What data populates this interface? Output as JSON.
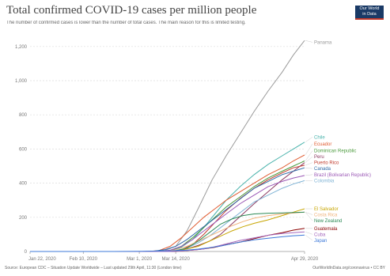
{
  "header": {
    "title": "Total confirmed COVID-19 cases per million people",
    "subtitle": "The number of confirmed cases is lower than the number of total cases. The main reason for this is limited testing.",
    "logo_line1": "Our World",
    "logo_line2": "in Data"
  },
  "footer": {
    "source": "Source: European CDC – Situation Update Worldwide – Last updated 29th April, 11:30 (London time)",
    "license": "OurWorldInData.org/coronavirus • CC BY"
  },
  "chart_data": {
    "type": "line",
    "title": "Total confirmed COVID-19 cases per million people",
    "subtitle": "The number of confirmed cases is lower than the number of total cases. The main reason for this is limited testing.",
    "x_tick_labels": [
      "Jan 22, 2020",
      "Feb 10, 2020",
      "Mar 1, 2020",
      "Mar 14, 2020",
      "Apr 29, 2020"
    ],
    "x_tick_days": [
      0,
      19,
      39,
      52,
      98
    ],
    "xlim_days": [
      0,
      98
    ],
    "y_ticks": [
      0,
      200,
      400,
      600,
      800,
      1000,
      1200
    ],
    "y_tick_labels": [
      "0",
      "200",
      "400",
      "600",
      "800",
      "1,000",
      "1,200"
    ],
    "ylim": [
      0,
      1250
    ],
    "grid": true,
    "legend": "line-end labels",
    "series": [
      {
        "name": "Panama",
        "color": "#9a9a9a",
        "label_value": 1225,
        "points": [
          [
            0,
            0
          ],
          [
            44,
            0
          ],
          [
            48,
            5
          ],
          [
            52,
            30
          ],
          [
            56,
            120
          ],
          [
            60,
            250
          ],
          [
            65,
            420
          ],
          [
            70,
            560
          ],
          [
            75,
            690
          ],
          [
            80,
            820
          ],
          [
            85,
            940
          ],
          [
            90,
            1050
          ],
          [
            94,
            1150
          ],
          [
            98,
            1235
          ]
        ]
      },
      {
        "name": "Chile",
        "color": "#4ab3ac",
        "label_value": 670,
        "points": [
          [
            0,
            0
          ],
          [
            46,
            0
          ],
          [
            50,
            5
          ],
          [
            54,
            25
          ],
          [
            58,
            70
          ],
          [
            62,
            140
          ],
          [
            66,
            220
          ],
          [
            70,
            300
          ],
          [
            75,
            380
          ],
          [
            80,
            450
          ],
          [
            85,
            510
          ],
          [
            90,
            560
          ],
          [
            94,
            600
          ],
          [
            98,
            640
          ]
        ]
      },
      {
        "name": "Ecuador",
        "color": "#e05c32",
        "label_value": 630,
        "points": [
          [
            0,
            0
          ],
          [
            42,
            0
          ],
          [
            46,
            5
          ],
          [
            50,
            30
          ],
          [
            54,
            80
          ],
          [
            58,
            140
          ],
          [
            62,
            200
          ],
          [
            66,
            250
          ],
          [
            70,
            300
          ],
          [
            75,
            350
          ],
          [
            80,
            400
          ],
          [
            85,
            450
          ],
          [
            90,
            490
          ],
          [
            94,
            530
          ],
          [
            98,
            565
          ]
        ]
      },
      {
        "name": "Dominican Republic",
        "color": "#4a9a3c",
        "label_value": 590,
        "points": [
          [
            0,
            0
          ],
          [
            46,
            0
          ],
          [
            50,
            5
          ],
          [
            54,
            30
          ],
          [
            58,
            80
          ],
          [
            62,
            140
          ],
          [
            66,
            200
          ],
          [
            70,
            260
          ],
          [
            75,
            320
          ],
          [
            80,
            380
          ],
          [
            85,
            430
          ],
          [
            90,
            470
          ],
          [
            94,
            500
          ],
          [
            98,
            530
          ]
        ]
      },
      {
        "name": "Peru",
        "color": "#8b3a62",
        "label_value": 555,
        "points": [
          [
            0,
            0
          ],
          [
            48,
            0
          ],
          [
            52,
            5
          ],
          [
            56,
            15
          ],
          [
            60,
            35
          ],
          [
            64,
            60
          ],
          [
            68,
            100
          ],
          [
            72,
            160
          ],
          [
            76,
            220
          ],
          [
            80,
            280
          ],
          [
            85,
            350
          ],
          [
            90,
            420
          ],
          [
            94,
            470
          ],
          [
            98,
            520
          ]
        ]
      },
      {
        "name": "Puerto Rico",
        "color": "#c0392b",
        "label_value": 525,
        "points": [
          [
            0,
            0
          ],
          [
            50,
            0
          ],
          [
            54,
            10
          ],
          [
            58,
            40
          ],
          [
            62,
            100
          ],
          [
            66,
            170
          ],
          [
            70,
            240
          ],
          [
            75,
            310
          ],
          [
            80,
            370
          ],
          [
            85,
            420
          ],
          [
            90,
            460
          ],
          [
            94,
            490
          ],
          [
            98,
            505
          ]
        ]
      },
      {
        "name": "Canada",
        "color": "#2f6aa8",
        "label_value": 495,
        "points": [
          [
            0,
            0
          ],
          [
            40,
            0
          ],
          [
            44,
            2
          ],
          [
            48,
            10
          ],
          [
            52,
            30
          ],
          [
            56,
            70
          ],
          [
            60,
            120
          ],
          [
            64,
            170
          ],
          [
            68,
            220
          ],
          [
            72,
            270
          ],
          [
            76,
            320
          ],
          [
            80,
            370
          ],
          [
            85,
            410
          ],
          [
            90,
            450
          ],
          [
            94,
            470
          ],
          [
            98,
            490
          ]
        ]
      },
      {
        "name": "Brazil (Bolivarian Republic)",
        "color": "#9b59b6",
        "label_value": 450,
        "points": [
          [
            0,
            0
          ],
          [
            46,
            0
          ],
          [
            50,
            8
          ],
          [
            54,
            30
          ],
          [
            58,
            70
          ],
          [
            62,
            120
          ],
          [
            66,
            170
          ],
          [
            70,
            220
          ],
          [
            75,
            280
          ],
          [
            80,
            330
          ],
          [
            85,
            380
          ],
          [
            90,
            410
          ],
          [
            94,
            430
          ],
          [
            98,
            445
          ]
        ]
      },
      {
        "name": "Colombia",
        "color": "#7fb3d5",
        "label_value": 415,
        "points": [
          [
            0,
            0
          ],
          [
            48,
            0
          ],
          [
            52,
            6
          ],
          [
            56,
            20
          ],
          [
            60,
            50
          ],
          [
            64,
            90
          ],
          [
            68,
            140
          ],
          [
            72,
            190
          ],
          [
            76,
            240
          ],
          [
            80,
            290
          ],
          [
            85,
            330
          ],
          [
            90,
            370
          ],
          [
            94,
            395
          ],
          [
            98,
            415
          ]
        ]
      },
      {
        "name": "El Salvador",
        "color": "#c7a500",
        "label_value": 250,
        "points": [
          [
            0,
            0
          ],
          [
            48,
            0
          ],
          [
            52,
            4
          ],
          [
            56,
            15
          ],
          [
            60,
            30
          ],
          [
            64,
            60
          ],
          [
            68,
            90
          ],
          [
            72,
            120
          ],
          [
            76,
            145
          ],
          [
            80,
            165
          ],
          [
            85,
            185
          ],
          [
            90,
            210
          ],
          [
            94,
            230
          ],
          [
            98,
            250
          ]
        ]
      },
      {
        "name": "Costa Rica",
        "color": "#f0b27a",
        "label_value": 230,
        "points": [
          [
            0,
            0
          ],
          [
            48,
            0
          ],
          [
            52,
            10
          ],
          [
            56,
            30
          ],
          [
            60,
            60
          ],
          [
            64,
            90
          ],
          [
            68,
            120
          ],
          [
            72,
            150
          ],
          [
            76,
            175
          ],
          [
            80,
            195
          ],
          [
            85,
            210
          ],
          [
            90,
            220
          ],
          [
            94,
            225
          ],
          [
            98,
            230
          ]
        ]
      },
      {
        "name": "New Zealand",
        "color": "#2e8b57",
        "label_value": 225,
        "points": [
          [
            0,
            0
          ],
          [
            48,
            0
          ],
          [
            52,
            4
          ],
          [
            56,
            20
          ],
          [
            60,
            60
          ],
          [
            64,
            110
          ],
          [
            68,
            160
          ],
          [
            72,
            190
          ],
          [
            76,
            210
          ],
          [
            80,
            220
          ],
          [
            85,
            224
          ],
          [
            90,
            226
          ],
          [
            94,
            228
          ],
          [
            98,
            230
          ]
        ]
      },
      {
        "name": "Guatemala",
        "color": "#8b0000",
        "label_value": 135,
        "points": [
          [
            0,
            0
          ],
          [
            50,
            0
          ],
          [
            54,
            3
          ],
          [
            58,
            8
          ],
          [
            62,
            15
          ],
          [
            66,
            25
          ],
          [
            70,
            40
          ],
          [
            75,
            55
          ],
          [
            80,
            75
          ],
          [
            85,
            95
          ],
          [
            90,
            110
          ],
          [
            94,
            125
          ],
          [
            98,
            135
          ]
        ]
      },
      {
        "name": "Cuba",
        "color": "#a569bd",
        "label_value": 110,
        "points": [
          [
            0,
            0
          ],
          [
            50,
            0
          ],
          [
            54,
            3
          ],
          [
            58,
            8
          ],
          [
            62,
            15
          ],
          [
            66,
            28
          ],
          [
            70,
            45
          ],
          [
            75,
            65
          ],
          [
            80,
            80
          ],
          [
            85,
            95
          ],
          [
            90,
            105
          ],
          [
            94,
            110
          ],
          [
            98,
            115
          ]
        ]
      },
      {
        "name": "Japan",
        "color": "#3c78d8",
        "label_value": 95,
        "points": [
          [
            0,
            0
          ],
          [
            30,
            0
          ],
          [
            40,
            1
          ],
          [
            46,
            3
          ],
          [
            52,
            5
          ],
          [
            56,
            8
          ],
          [
            60,
            14
          ],
          [
            64,
            22
          ],
          [
            68,
            32
          ],
          [
            72,
            45
          ],
          [
            76,
            58
          ],
          [
            80,
            68
          ],
          [
            85,
            78
          ],
          [
            90,
            86
          ],
          [
            94,
            92
          ],
          [
            98,
            96
          ]
        ]
      }
    ]
  }
}
